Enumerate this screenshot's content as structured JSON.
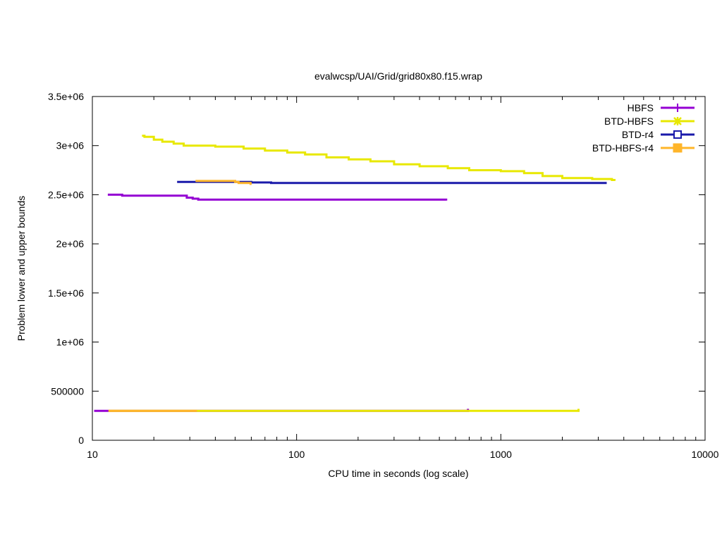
{
  "chart_data": {
    "type": "line",
    "title": "evalwcsp/UAI/Grid/grid80x80.f15.wrap",
    "xlabel": "CPU time in seconds (log scale)",
    "ylabel": "Problem lower and upper bounds",
    "xscale": "log",
    "xlim": [
      10,
      10000
    ],
    "ylim": [
      0,
      3500000
    ],
    "xticks": [
      10,
      100,
      1000,
      10000
    ],
    "xtick_labels": [
      "10",
      "100",
      "1000",
      "10000"
    ],
    "yticks": [
      0,
      500000,
      1000000,
      1500000,
      2000000,
      2500000,
      3000000,
      3500000
    ],
    "ytick_labels": [
      "0",
      "500000",
      "1e+06",
      "1.5e+06",
      "2e+06",
      "2.5e+06",
      "3e+06",
      "3.5e+06"
    ],
    "legend_position": "top-right",
    "grid": false,
    "series": [
      {
        "name": "HBFS",
        "color": "#9400d3",
        "marker": "plus",
        "upper": [
          [
            11.9,
            2500000
          ],
          [
            14.0,
            2490000
          ],
          [
            29.0,
            2470000
          ],
          [
            31.0,
            2460000
          ],
          [
            33.0,
            2450000
          ],
          [
            540,
            2440000
          ]
        ],
        "lower": [
          [
            10.2,
            300000
          ],
          [
            11.3,
            300000
          ],
          [
            12.0,
            300000
          ],
          [
            680,
            300000
          ],
          [
            690,
            320000
          ]
        ]
      },
      {
        "name": "BTD-HBFS",
        "color": "#e8e800",
        "marker": "x",
        "upper": [
          [
            17.5,
            3100000
          ],
          [
            18.0,
            3090000
          ],
          [
            20.0,
            3060000
          ],
          [
            22.0,
            3040000
          ],
          [
            25.0,
            3020000
          ],
          [
            28.0,
            3000000
          ],
          [
            40.0,
            2990000
          ],
          [
            55.0,
            2970000
          ],
          [
            70.0,
            2950000
          ],
          [
            90.0,
            2930000
          ],
          [
            110,
            2910000
          ],
          [
            140,
            2880000
          ],
          [
            180,
            2860000
          ],
          [
            230,
            2840000
          ],
          [
            300,
            2810000
          ],
          [
            400,
            2790000
          ],
          [
            550,
            2770000
          ],
          [
            700,
            2750000
          ],
          [
            1000,
            2740000
          ],
          [
            1300,
            2720000
          ],
          [
            1600,
            2690000
          ],
          [
            2000,
            2670000
          ],
          [
            2800,
            2660000
          ],
          [
            3500,
            2650000
          ],
          [
            3600,
            2640000
          ]
        ],
        "lower": [
          [
            12.0,
            300000
          ],
          [
            2400,
            300000
          ],
          [
            2400,
            320000
          ]
        ]
      },
      {
        "name": "BTD-r4",
        "color": "#1a1aaa",
        "marker": "square",
        "upper": [
          [
            26.0,
            2630000
          ],
          [
            60.0,
            2625000
          ],
          [
            75.0,
            2620000
          ],
          [
            3300,
            2620000
          ]
        ],
        "lower": []
      },
      {
        "name": "BTD-HBFS-r4",
        "color": "#ffb529",
        "marker": "filled-square",
        "upper": [
          [
            32.0,
            2640000
          ],
          [
            50.0,
            2630000
          ],
          [
            52.0,
            2620000
          ],
          [
            59.0,
            2620000
          ],
          [
            59.5,
            2600000
          ]
        ],
        "lower": [
          [
            12.0,
            300000
          ],
          [
            32.5,
            300000
          ]
        ]
      }
    ]
  }
}
